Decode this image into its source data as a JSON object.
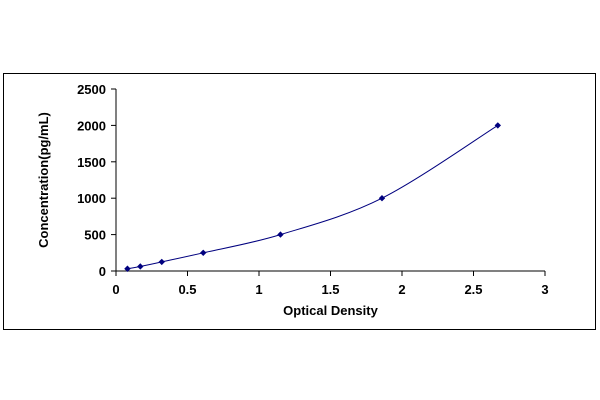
{
  "chart_data": {
    "type": "scatter",
    "title": "",
    "xlabel": "Optical Density",
    "ylabel": "Concentration(pg/mL)",
    "xlim": [
      0,
      3
    ],
    "ylim": [
      0,
      2500
    ],
    "x_ticks": [
      "0",
      "0.5",
      "1",
      "1.5",
      "2",
      "2.5",
      "3"
    ],
    "y_ticks": [
      "0",
      "500",
      "1000",
      "1500",
      "2000",
      "2500"
    ],
    "grid": false,
    "legend": "none",
    "colors": {
      "marker": "#00007f",
      "curve": "#00007f",
      "axis": "#000000"
    },
    "series": [
      {
        "x": [
          0.08,
          0.17,
          0.32,
          0.61,
          1.15,
          1.86,
          2.67
        ],
        "y": [
          31,
          62,
          125,
          250,
          500,
          1000,
          2000
        ]
      }
    ],
    "fit": "smooth curve through points"
  }
}
